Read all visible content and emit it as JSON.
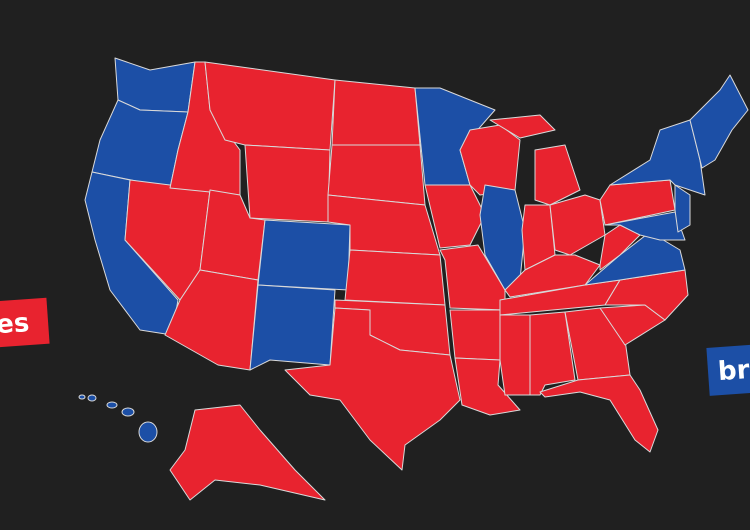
{
  "labels": {
    "left": "es",
    "right": "br"
  }
}
